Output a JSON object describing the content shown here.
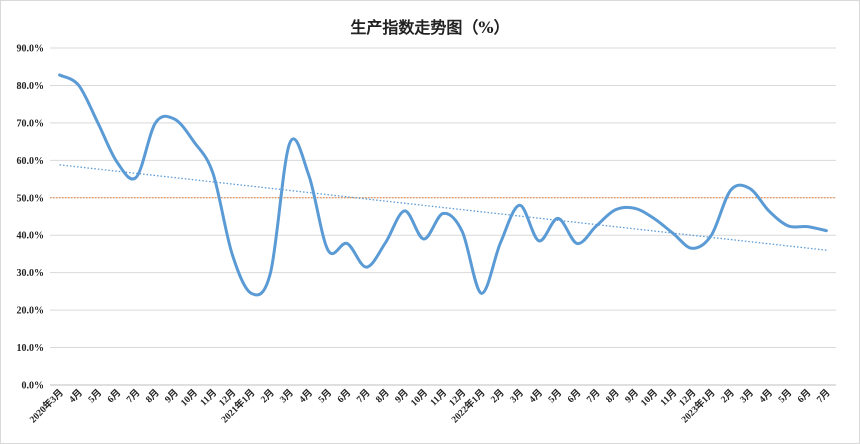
{
  "chart_data": {
    "type": "line",
    "title": "生产指数走势图（%）",
    "xlabel": "",
    "ylabel": "",
    "ylim": [
      0,
      90
    ],
    "y_ticks": [
      "0.0%",
      "10.0%",
      "20.0%",
      "30.0%",
      "40.0%",
      "50.0%",
      "60.0%",
      "70.0%",
      "80.0%",
      "90.0%"
    ],
    "x_ticks": [
      "2020年3月",
      "4月",
      "5月",
      "6月",
      "7月",
      "8月",
      "9月",
      "10月",
      "11月",
      "12月",
      "2021年1月",
      "2月",
      "3月",
      "4月",
      "5月",
      "6月",
      "7月",
      "8月",
      "9月",
      "10月",
      "11月",
      "12月",
      "2022年1月",
      "2月",
      "3月",
      "4月",
      "5月",
      "6月",
      "7月",
      "8月",
      "9月",
      "10月",
      "11月",
      "12月",
      "2023年1月",
      "2月",
      "3月",
      "4月",
      "5月",
      "6月",
      "7月"
    ],
    "grid": true,
    "legend": "none",
    "series": [
      {
        "color": "#5b9bd5",
        "smooth": true,
        "values": [
          82.8,
          80.0,
          70.0,
          59.5,
          55.5,
          70.0,
          71.0,
          65.0,
          56.5,
          35.0,
          24.5,
          30.0,
          64.5,
          56.0,
          36.0,
          37.8,
          31.5,
          38.0,
          46.5,
          39.0,
          45.8,
          41.0,
          24.5,
          38.0,
          48.0,
          38.5,
          44.5,
          37.8,
          42.5,
          46.8,
          47.2,
          44.5,
          40.5,
          36.5,
          40.0,
          52.0,
          52.5,
          46.5,
          42.5,
          42.3,
          41.2
        ]
      }
    ],
    "reference_lines": [
      {
        "type": "horizontal",
        "value": 50,
        "color": "#ed7d31",
        "style": "dotted"
      },
      {
        "type": "trend",
        "start": 58.8,
        "end": 36.0,
        "color": "#5b9bd5",
        "style": "dotted"
      }
    ]
  }
}
